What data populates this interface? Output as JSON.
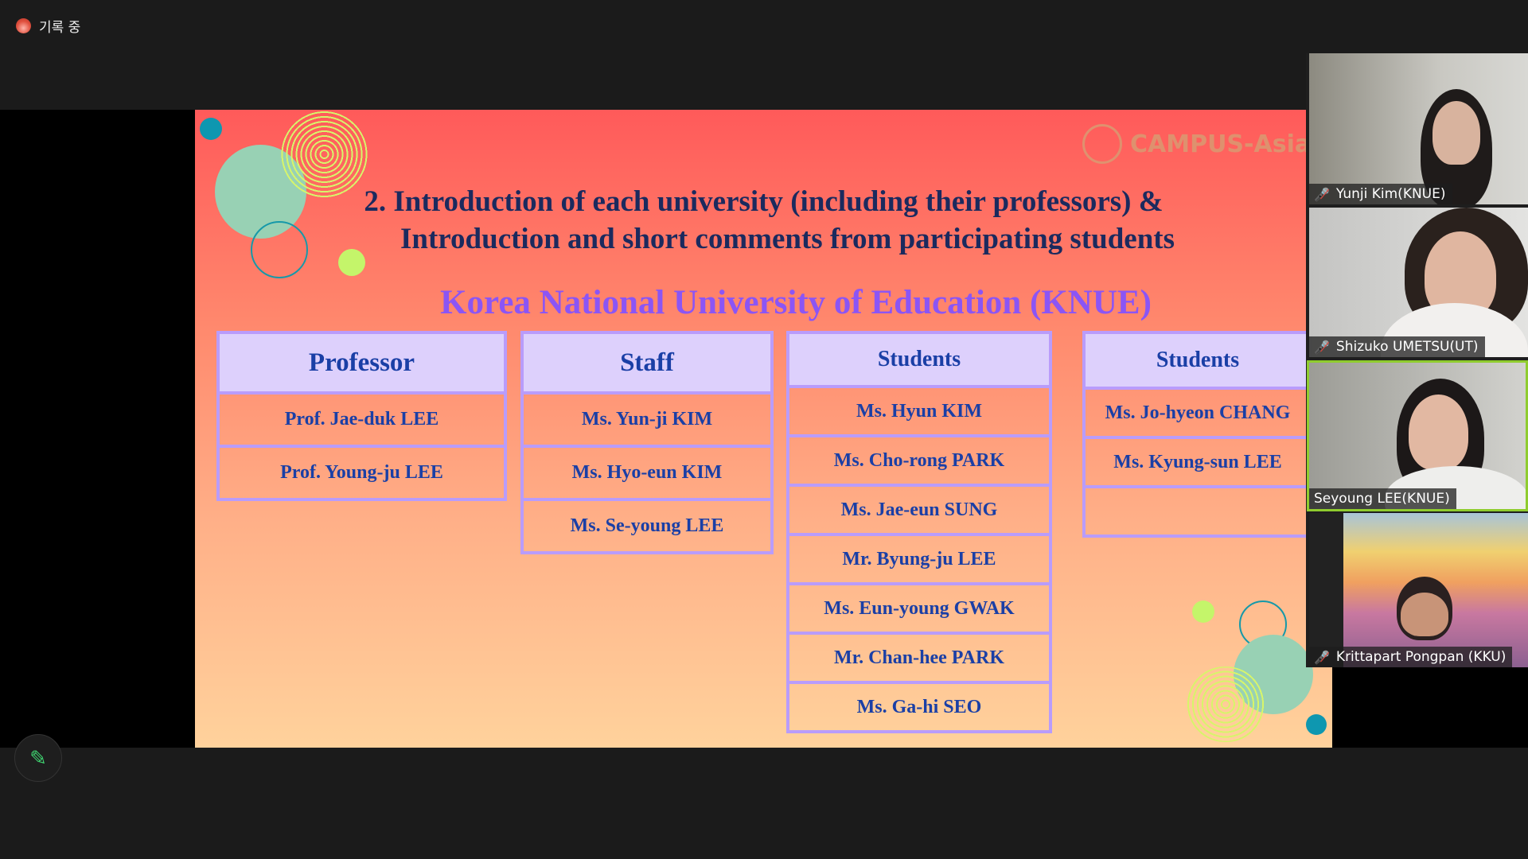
{
  "recording": {
    "label": "기록 중",
    "icon": "record-dot-icon",
    "color": "#e0503e"
  },
  "slide": {
    "logo_text": "CAMPUS-Asia",
    "title_line1": "2. Introduction of each university (including their professors)  &",
    "title_line2": "Introduction and short comments from participating students",
    "university": "Korea National University of Education (KNUE)",
    "tables": [
      {
        "header": "Professor",
        "rows": [
          "Prof. Jae-duk LEE",
          "Prof. Young-ju LEE"
        ]
      },
      {
        "header": "Staff",
        "rows": [
          "Ms. Yun-ji KIM",
          "Ms. Hyo-eun KIM",
          "Ms. Se-young LEE"
        ]
      },
      {
        "header": "Students",
        "rows": [
          "Ms. Hyun KIM",
          "Ms. Cho-rong PARK",
          "Ms. Jae-eun SUNG",
          "Mr. Byung-ju LEE",
          "Ms. Eun-young GWAK",
          "Mr. Chan-hee PARK",
          "Ms. Ga-hi SEO"
        ]
      },
      {
        "header": "Students",
        "rows": [
          "Ms. Jo-hyeon CHANG",
          "Ms. Kyung-sun LEE",
          ""
        ]
      }
    ],
    "colors": {
      "header_fill": "#ddd0fc",
      "border": "#b99cfb",
      "text": "#1a3fa6",
      "title": "#1b2a5e",
      "university": "#8b55f5"
    }
  },
  "participants": [
    {
      "name": "Yunji Kim(KNUE)",
      "muted": true
    },
    {
      "name": "Shizuko UMETSU(UT)",
      "muted": true
    },
    {
      "name": "Seyoung LEE(KNUE)",
      "muted": false,
      "active_speaker": true
    },
    {
      "name": "Krittapart Pongpan (KKU)",
      "muted": true
    }
  ],
  "annotate_button": {
    "icon": "pencil-icon",
    "color": "#3ecf6e"
  }
}
